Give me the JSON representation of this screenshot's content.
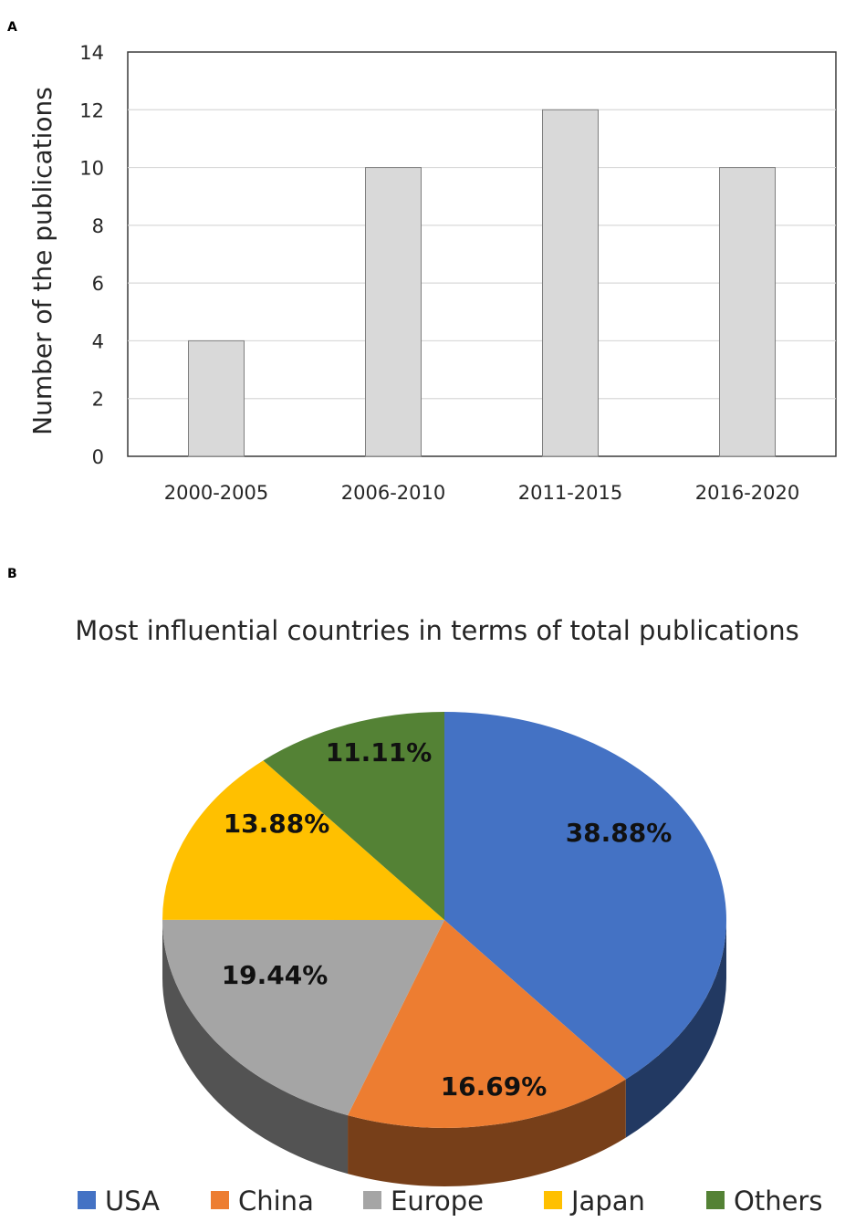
{
  "panel_labels": {
    "a": "A",
    "b": "B"
  },
  "chart_data": [
    {
      "type": "bar",
      "title": "",
      "xlabel": "",
      "ylabel": "Number of the publications",
      "categories": [
        "2000-2005",
        "2006-2010",
        "2011-2015",
        "2016-2020"
      ],
      "values": [
        4,
        10,
        12,
        10
      ],
      "ylim": [
        0,
        14
      ],
      "yticks": [
        "0",
        "2",
        "4",
        "6",
        "8",
        "10",
        "12",
        "14"
      ],
      "grid": true,
      "bar_color": "#d9d9d9",
      "bar_edge_color": "#7f7f7f"
    },
    {
      "type": "pie",
      "title": "Most influential countries in terms of total publications",
      "style": "3d",
      "legend_position": "bottom",
      "slices": [
        {
          "name": "USA",
          "value": 38.88,
          "label": "38.88%",
          "color": "#4472c4"
        },
        {
          "name": "China",
          "value": 16.69,
          "label": "16.69%",
          "color": "#ed7d31"
        },
        {
          "name": "Europe",
          "value": 19.44,
          "label": "19.44%",
          "color": "#a5a5a5"
        },
        {
          "name": "Japan",
          "value": 13.88,
          "label": "13.88%",
          "color": "#ffc000"
        },
        {
          "name": "Others",
          "value": 11.11,
          "label": "11.11%",
          "color": "#548235"
        }
      ]
    }
  ]
}
